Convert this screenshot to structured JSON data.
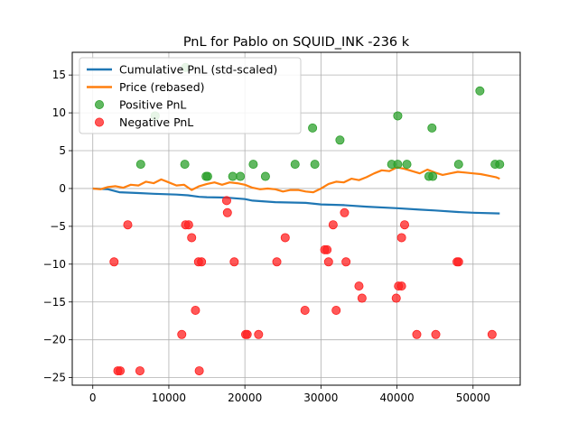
{
  "chart_data": {
    "type": "line",
    "title": "PnL for Pablo on SQUID_INK -236 k",
    "xlabel": "",
    "ylabel": "",
    "xlim": [
      -2700,
      56200
    ],
    "ylim": [
      -26,
      18
    ],
    "xticks": [
      0,
      10000,
      20000,
      30000,
      40000,
      50000
    ],
    "yticks": [
      -25,
      -20,
      -15,
      -10,
      -5,
      0,
      5,
      10,
      15
    ],
    "grid": true,
    "legend_position": "upper-left",
    "legend": [
      {
        "label": "Cumulative PnL (std-scaled)",
        "kind": "line",
        "color": "#1f77b4"
      },
      {
        "label": "Price (rebased)",
        "kind": "line",
        "color": "#ff7f0e"
      },
      {
        "label": "Positive PnL",
        "kind": "marker",
        "color": "#2ca02c"
      },
      {
        "label": "Negative PnL",
        "kind": "marker",
        "color": "#ff2020"
      }
    ],
    "series": [
      {
        "name": "Cumulative PnL (std-scaled)",
        "color": "#1f77b4",
        "x": [
          0,
          2000,
          3500,
          6000,
          8000,
          11000,
          12500,
          14000,
          15000,
          17500,
          20000,
          21000,
          24000,
          28000,
          30000,
          33000,
          36000,
          40000,
          43000,
          45000,
          48000,
          50000,
          53500
        ],
        "y": [
          0,
          -0.1,
          -0.5,
          -0.6,
          -0.7,
          -0.8,
          -0.9,
          -1.1,
          -1.15,
          -1.2,
          -1.4,
          -1.6,
          -1.8,
          -1.9,
          -2.1,
          -2.2,
          -2.4,
          -2.6,
          -2.8,
          -2.9,
          -3.1,
          -3.2,
          -3.3
        ]
      },
      {
        "name": "Price (rebased)",
        "color": "#ff7f0e",
        "x": [
          0,
          1000,
          2000,
          3000,
          4000,
          5000,
          6000,
          7000,
          8000,
          9000,
          10000,
          11000,
          12000,
          13000,
          14000,
          15000,
          16000,
          17000,
          18000,
          19000,
          20000,
          21000,
          22000,
          23000,
          24000,
          25000,
          26000,
          27000,
          28000,
          29000,
          30000,
          31000,
          32000,
          33000,
          34000,
          35000,
          36000,
          37000,
          38000,
          39000,
          40000,
          41000,
          42000,
          43000,
          44000,
          45000,
          46000,
          47000,
          48000,
          49000,
          50000,
          51000,
          52000,
          53000,
          53500
        ],
        "y": [
          0,
          -0.1,
          0.2,
          0.3,
          0.1,
          0.5,
          0.4,
          0.9,
          0.7,
          1.2,
          0.8,
          0.4,
          0.5,
          -0.2,
          0.3,
          0.6,
          0.8,
          0.5,
          0.8,
          0.7,
          0.5,
          0.1,
          -0.1,
          0.0,
          -0.1,
          -0.4,
          -0.2,
          -0.2,
          -0.4,
          -0.5,
          0.0,
          0.6,
          0.9,
          0.8,
          1.3,
          1.1,
          1.5,
          2.0,
          2.4,
          2.3,
          2.8,
          2.6,
          2.3,
          2.0,
          2.5,
          2.1,
          1.8,
          2.0,
          2.2,
          2.1,
          2.0,
          1.9,
          1.7,
          1.5,
          1.3
        ]
      },
      {
        "name": "Positive PnL",
        "color": "#2ca02c",
        "points": [
          [
            6300,
            3.2
          ],
          [
            8200,
            9.6
          ],
          [
            12100,
            3.2
          ],
          [
            12200,
            16.0
          ],
          [
            14900,
            1.6
          ],
          [
            15100,
            1.6
          ],
          [
            18400,
            1.6
          ],
          [
            19400,
            1.6
          ],
          [
            21100,
            3.2
          ],
          [
            22700,
            1.6
          ],
          [
            26600,
            3.2
          ],
          [
            28900,
            8.0
          ],
          [
            29200,
            3.2
          ],
          [
            32500,
            6.4
          ],
          [
            39300,
            3.2
          ],
          [
            40100,
            9.6
          ],
          [
            40100,
            3.2
          ],
          [
            41300,
            3.2
          ],
          [
            44200,
            1.6
          ],
          [
            44700,
            1.6
          ],
          [
            44600,
            8.0
          ],
          [
            48100,
            3.2
          ],
          [
            50900,
            12.9
          ],
          [
            52900,
            3.2
          ],
          [
            53500,
            3.2
          ]
        ]
      },
      {
        "name": "Negative PnL",
        "color": "#ff2020",
        "points": [
          [
            2800,
            -9.7
          ],
          [
            3300,
            -24.1
          ],
          [
            3600,
            -24.1
          ],
          [
            4600,
            -4.8
          ],
          [
            6200,
            -24.1
          ],
          [
            11700,
            -19.3
          ],
          [
            12200,
            -4.8
          ],
          [
            12600,
            -4.8
          ],
          [
            13000,
            -6.5
          ],
          [
            13500,
            -16.1
          ],
          [
            13900,
            -9.7
          ],
          [
            14000,
            -24.1
          ],
          [
            14300,
            -9.7
          ],
          [
            17600,
            -1.6
          ],
          [
            17700,
            -3.2
          ],
          [
            18600,
            -9.7
          ],
          [
            20100,
            -19.3
          ],
          [
            20300,
            -19.3
          ],
          [
            21800,
            -19.3
          ],
          [
            24200,
            -9.7
          ],
          [
            25300,
            -6.5
          ],
          [
            27900,
            -16.1
          ],
          [
            30500,
            -8.1
          ],
          [
            30800,
            -8.1
          ],
          [
            31000,
            -9.7
          ],
          [
            31600,
            -4.8
          ],
          [
            32000,
            -16.1
          ],
          [
            33100,
            -3.2
          ],
          [
            33300,
            -9.7
          ],
          [
            35000,
            -12.9
          ],
          [
            35400,
            -14.5
          ],
          [
            39900,
            -14.5
          ],
          [
            40200,
            -12.9
          ],
          [
            40600,
            -12.9
          ],
          [
            40600,
            -6.5
          ],
          [
            41000,
            -4.8
          ],
          [
            42600,
            -19.3
          ],
          [
            45100,
            -19.3
          ],
          [
            47900,
            -9.7
          ],
          [
            48100,
            -9.7
          ],
          [
            52500,
            -19.3
          ]
        ]
      }
    ]
  }
}
